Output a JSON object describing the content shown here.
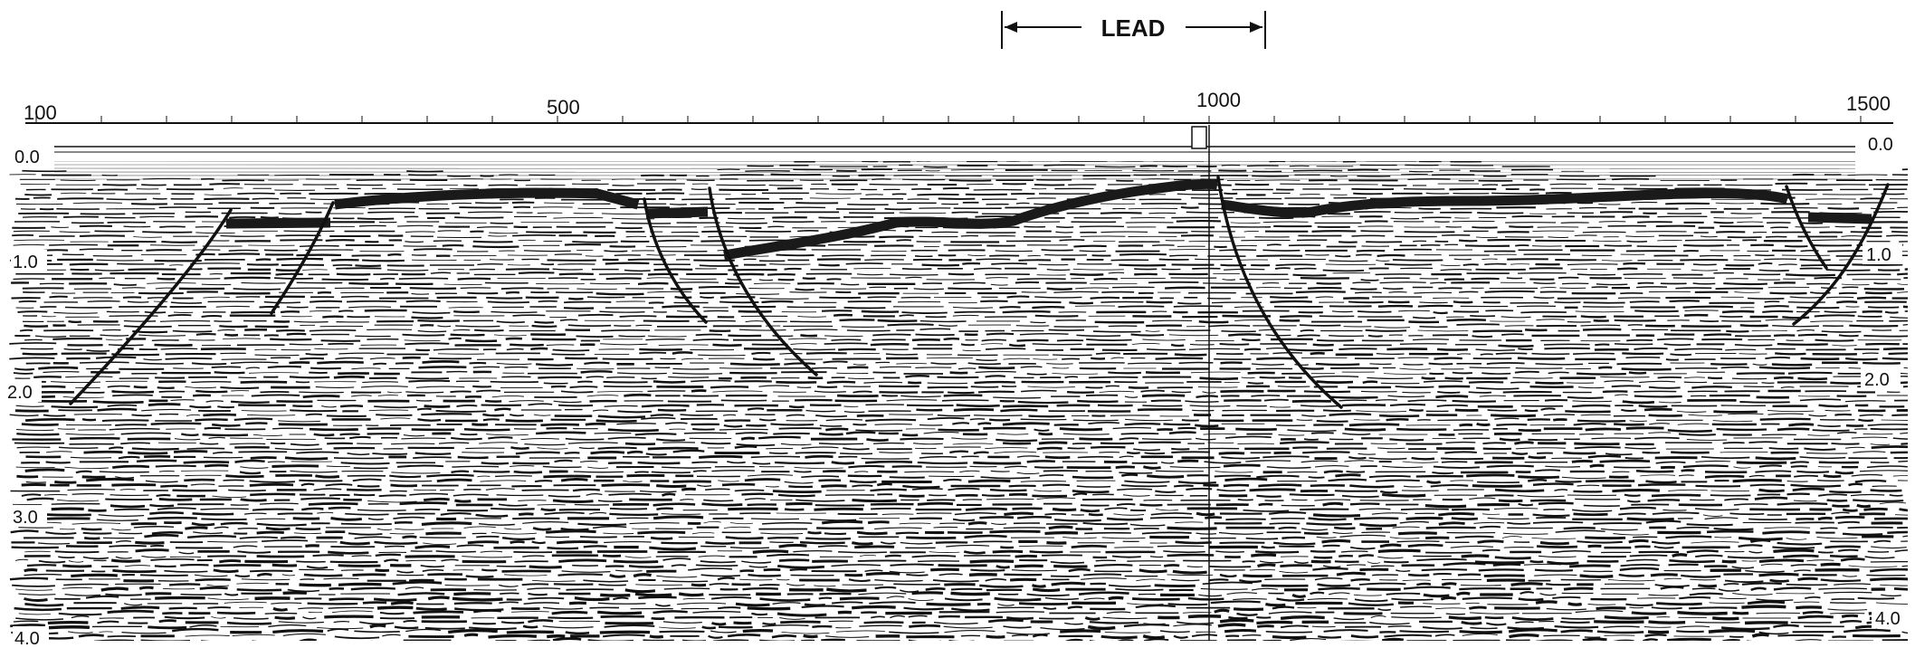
{
  "section": {
    "lead_label": "LEAD",
    "shotpoints": [
      "100",
      "500",
      "1000",
      "1500"
    ],
    "left_time_labels": [
      "0.0",
      "1.0",
      "2.0",
      "3.0",
      "4.0"
    ],
    "right_time_labels": [
      "0.0",
      "1.0",
      "2.0",
      "4.0"
    ]
  },
  "colors": {
    "ink": "#111111",
    "paper": "#ffffff",
    "horizon": "#1a1a1a"
  }
}
